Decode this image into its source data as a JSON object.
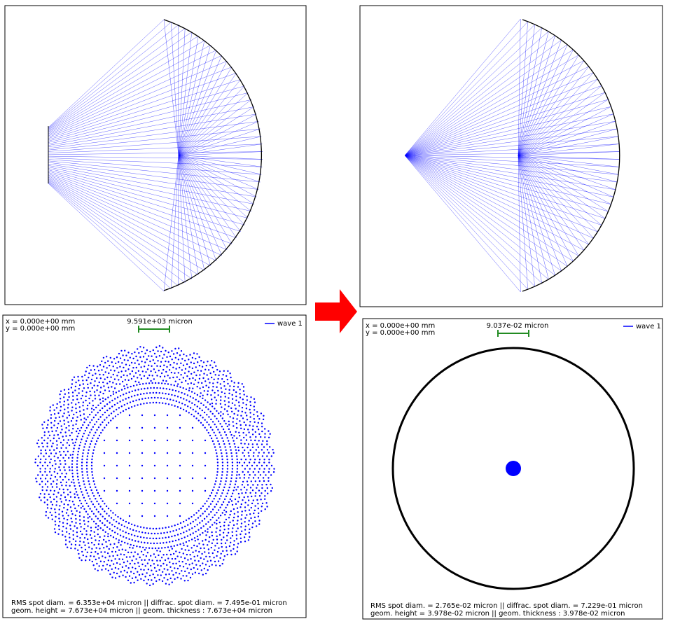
{
  "before": {
    "spot": {
      "x_label": "x = 0.000e+00 mm",
      "y_label": "y = 0.000e+00 mm",
      "scale_label": "9.591e+03 micron",
      "legend": "wave 1",
      "footer_1": "RMS spot diam. = 6.353e+04 micron || diffrac. spot diam. = 7.495e-01 micron",
      "footer_2": "geom. height = 7.673e+04 micron || geom. thickness : 7.673e+04 micron"
    }
  },
  "after": {
    "spot": {
      "x_label": "x = 0.000e+00 mm",
      "y_label": "y = 0.000e+00 mm",
      "scale_label": "9.037e-02 micron",
      "legend": "wave 1",
      "footer_1": "RMS spot diam. = 2.765e-02 micron || diffrac. spot diam. = 7.229e-01 micron",
      "footer_2": "geom. height = 3.978e-02 micron || geom. thickness : 3.978e-02 micron"
    }
  }
}
